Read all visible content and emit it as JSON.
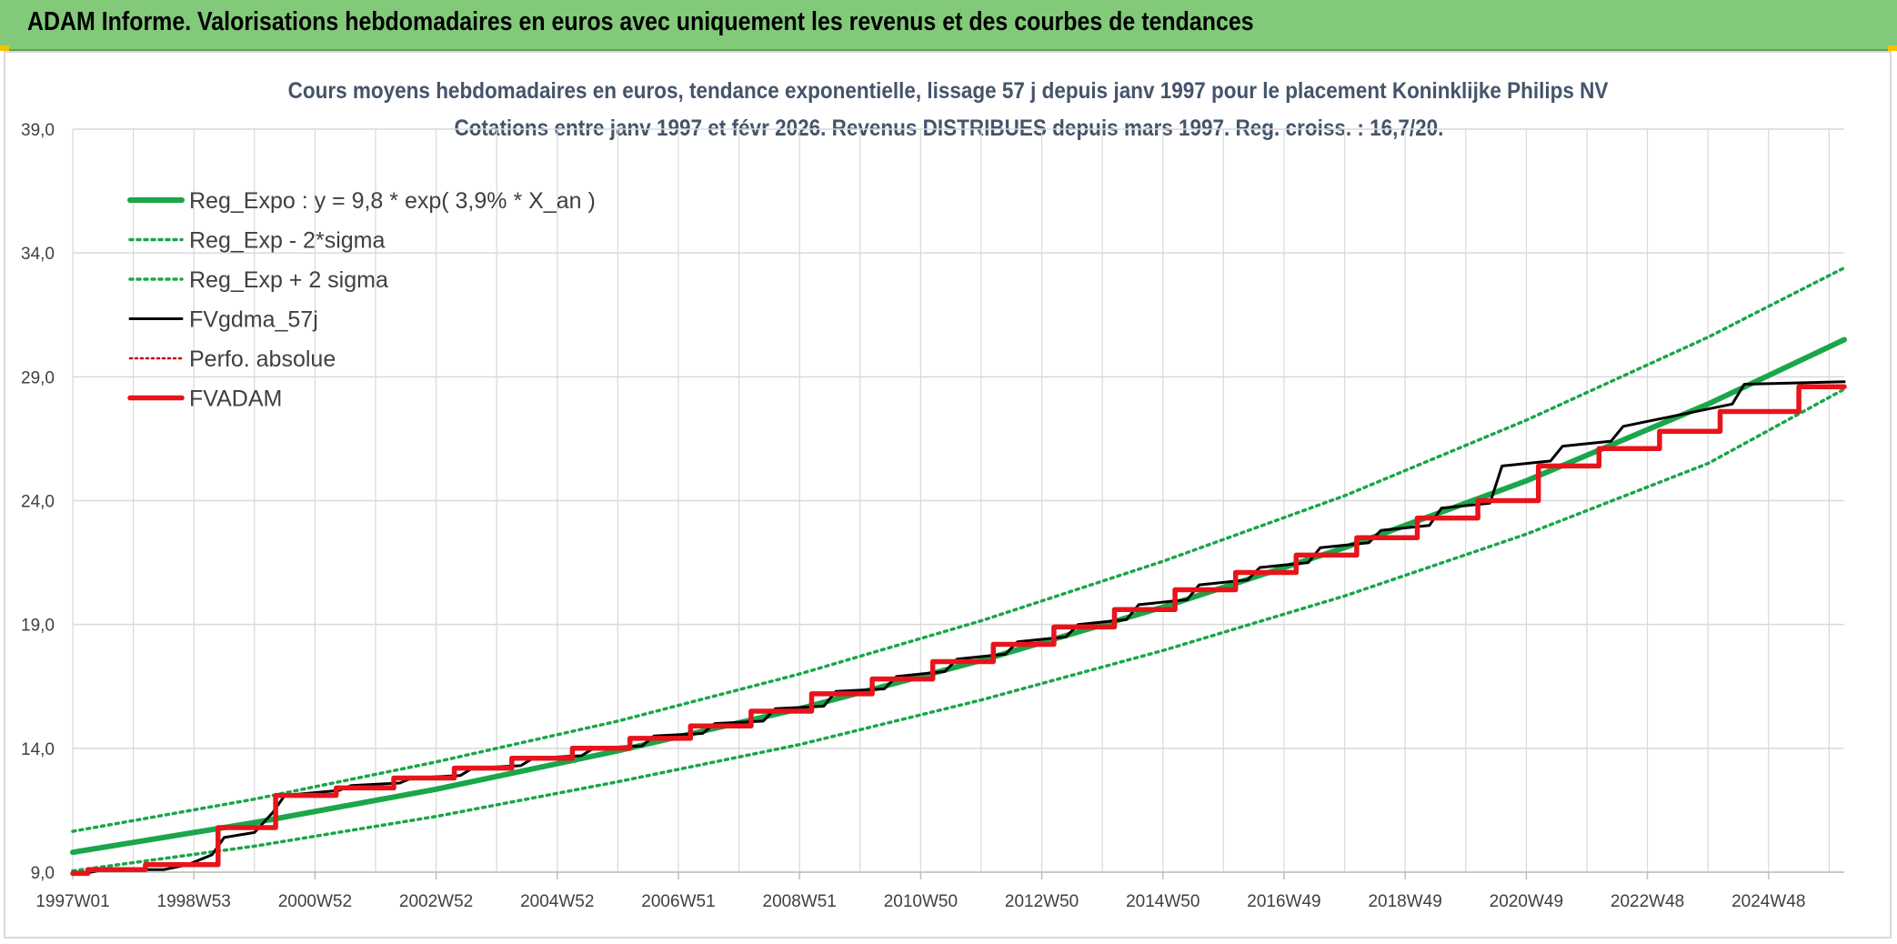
{
  "header": {
    "title": "ADAM Informe. Valorisations hebdomadaires en euros avec uniquement les revenus et des courbes de tendances"
  },
  "colors": {
    "banner": "#82c97a",
    "reg_expo": "#1aa64a",
    "fvgdma": "#000000",
    "fvadam": "#e8141b",
    "perfo": "#c00000"
  },
  "chart_data": {
    "type": "line",
    "title": "Cours moyens hebdomadaires en euros, tendance exponentielle, lissage 57 j depuis janv 1997 pour le placement Koninklijke Philips NV",
    "subtitle": "Cotations entre janv 1997 et févr 2026. Revenus DISTRIBUES depuis mars 1997. Reg. croiss. : 16,7/20.",
    "xlabel": "",
    "ylabel": "",
    "ylim": [
      9.0,
      39.0
    ],
    "xlim": [
      1997.0,
      2026.25
    ],
    "grid": true,
    "legend_position": "top-left",
    "yticks": [
      "9,0",
      "14,0",
      "19,0",
      "24,0",
      "29,0",
      "34,0",
      "39,0"
    ],
    "xticks": [
      "1997W01",
      "1998W53",
      "2000W52",
      "2002W52",
      "2004W52",
      "2006W51",
      "2008W51",
      "2010W50",
      "2012W50",
      "2014W50",
      "2016W49",
      "2018W49",
      "2020W49",
      "2022W48",
      "2024W48"
    ],
    "series": [
      {
        "name": "Reg_Expo : y = 9,8 * exp( 3,9% *  X_an )",
        "style": "solid-thick",
        "x": [
          1997.0,
          2000.0,
          2003.0,
          2006.0,
          2009.0,
          2012.0,
          2015.0,
          2018.0,
          2021.0,
          2024.0,
          2026.25
        ],
        "values": [
          9.8,
          11.0,
          12.35,
          13.9,
          15.6,
          17.55,
          19.7,
          22.1,
          24.8,
          27.9,
          30.5
        ]
      },
      {
        "name": "Reg_Exp - 2*sigma",
        "style": "dotted",
        "x": [
          1997.0,
          2000.0,
          2003.0,
          2006.0,
          2009.0,
          2012.0,
          2015.0,
          2018.0,
          2021.0,
          2024.0,
          2026.25
        ],
        "values": [
          9.05,
          10.05,
          11.25,
          12.65,
          14.15,
          15.95,
          17.95,
          20.15,
          22.65,
          25.5,
          28.5
        ]
      },
      {
        "name": "Reg_Exp + 2 sigma",
        "style": "dotted",
        "x": [
          1997.0,
          2000.0,
          2003.0,
          2006.0,
          2009.0,
          2012.0,
          2015.0,
          2018.0,
          2021.0,
          2024.0,
          2026.25
        ],
        "values": [
          10.65,
          11.95,
          13.45,
          15.1,
          17.0,
          19.15,
          21.55,
          24.2,
          27.25,
          30.6,
          33.4
        ]
      },
      {
        "name": "FVgdma_57j",
        "style": "solid-thin",
        "x": [
          1997.0,
          1997.3,
          1997.5,
          1998.5,
          1998.9,
          1999.3,
          1999.5,
          2000.0,
          2000.3,
          2000.5,
          2001.4,
          2001.6,
          2002.4,
          2002.6,
          2003.4,
          2003.6,
          2004.4,
          2004.6,
          2005.4,
          2005.6,
          2006.4,
          2006.6,
          2007.4,
          2007.6,
          2008.4,
          2008.6,
          2009.4,
          2009.6,
          2010.4,
          2010.6,
          2011.4,
          2011.6,
          2012.4,
          2012.6,
          2013.4,
          2013.6,
          2014.4,
          2014.6,
          2015.4,
          2015.6,
          2016.4,
          2016.6,
          2017.4,
          2017.6,
          2018.4,
          2018.6,
          2019.4,
          2019.6,
          2020.4,
          2020.6,
          2021.4,
          2021.6,
          2022.4,
          2022.6,
          2024.4,
          2024.6,
          2026.25
        ],
        "values": [
          9.0,
          9.0,
          9.1,
          9.1,
          9.3,
          9.7,
          10.4,
          10.6,
          11.4,
          12.1,
          12.3,
          12.5,
          12.6,
          12.8,
          12.9,
          13.2,
          13.3,
          13.6,
          13.7,
          14.0,
          14.1,
          14.5,
          14.6,
          15.0,
          15.1,
          15.6,
          15.7,
          16.3,
          16.4,
          16.9,
          17.1,
          17.6,
          17.8,
          18.3,
          18.5,
          19.0,
          19.2,
          19.8,
          20.0,
          20.6,
          20.8,
          21.3,
          21.5,
          22.1,
          22.3,
          22.8,
          23.0,
          23.7,
          23.9,
          25.4,
          25.6,
          26.2,
          26.4,
          27.0,
          27.9,
          28.7,
          28.8
        ]
      },
      {
        "name": "Perfo. absolue",
        "style": "dotted-red",
        "x": [],
        "values": []
      },
      {
        "name": "FVADAM",
        "style": "solid-thick-red",
        "step": true,
        "x": [
          1997.0,
          1997.25,
          1998.2,
          1999.4,
          2000.35,
          2001.35,
          2002.3,
          2003.3,
          2004.25,
          2005.25,
          2006.2,
          2007.2,
          2008.2,
          2009.2,
          2010.2,
          2011.2,
          2012.2,
          2013.2,
          2014.2,
          2015.2,
          2016.2,
          2017.2,
          2018.2,
          2019.2,
          2020.2,
          2021.2,
          2022.2,
          2023.2,
          2024.2,
          2025.5,
          2026.25
        ],
        "values": [
          8.95,
          9.1,
          9.3,
          10.8,
          12.1,
          12.4,
          12.8,
          13.2,
          13.6,
          14.0,
          14.4,
          14.9,
          15.5,
          16.2,
          16.8,
          17.5,
          18.2,
          18.9,
          19.6,
          20.4,
          21.1,
          21.8,
          22.5,
          23.3,
          24.0,
          25.4,
          26.1,
          26.8,
          27.6,
          28.6,
          28.6
        ]
      }
    ]
  }
}
